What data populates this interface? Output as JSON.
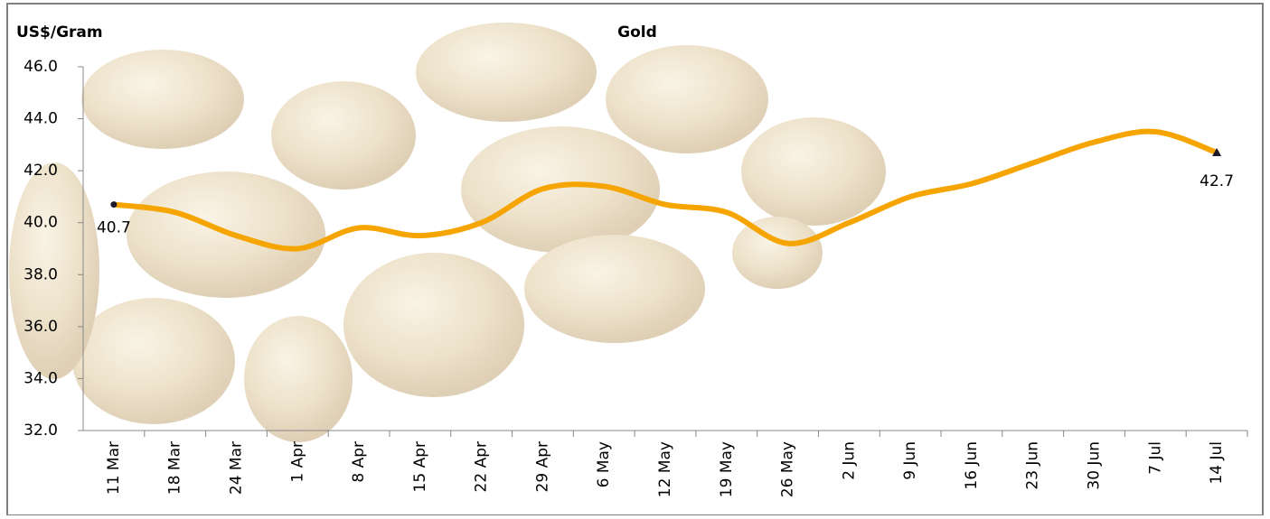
{
  "chart_data": {
    "type": "line",
    "title": "Gold",
    "y_axis_label": "US$/Gram",
    "categories": [
      "11 Mar",
      "18 Mar",
      "24 Mar",
      "1 Apr",
      "8 Apr",
      "15 Apr",
      "22 Apr",
      "29 Apr",
      "6 May",
      "12 May",
      "19 May",
      "26 May",
      "2 Jun",
      "9 Jun",
      "16 Jun",
      "23 Jun",
      "30 Jun",
      "7 Jul",
      "14 Jul"
    ],
    "series": [
      {
        "name": "Gold",
        "color": "#f5a400",
        "values": [
          40.7,
          40.4,
          39.5,
          39.0,
          39.8,
          39.5,
          40.0,
          41.3,
          41.4,
          40.7,
          40.4,
          39.2,
          40.0,
          41.0,
          41.5,
          42.3,
          43.1,
          43.5,
          42.7
        ]
      }
    ],
    "ylim": [
      32,
      46
    ],
    "yticks": [
      {
        "value": 32,
        "label": "32.0"
      },
      {
        "value": 34,
        "label": "34.0"
      },
      {
        "value": 36,
        "label": "36.0"
      },
      {
        "value": 38,
        "label": "38.0"
      },
      {
        "value": 40,
        "label": "40.0"
      },
      {
        "value": 42,
        "label": "42.0"
      },
      {
        "value": 44,
        "label": "44.0"
      },
      {
        "value": 46,
        "label": "46.0"
      }
    ],
    "grid": false
  }
}
